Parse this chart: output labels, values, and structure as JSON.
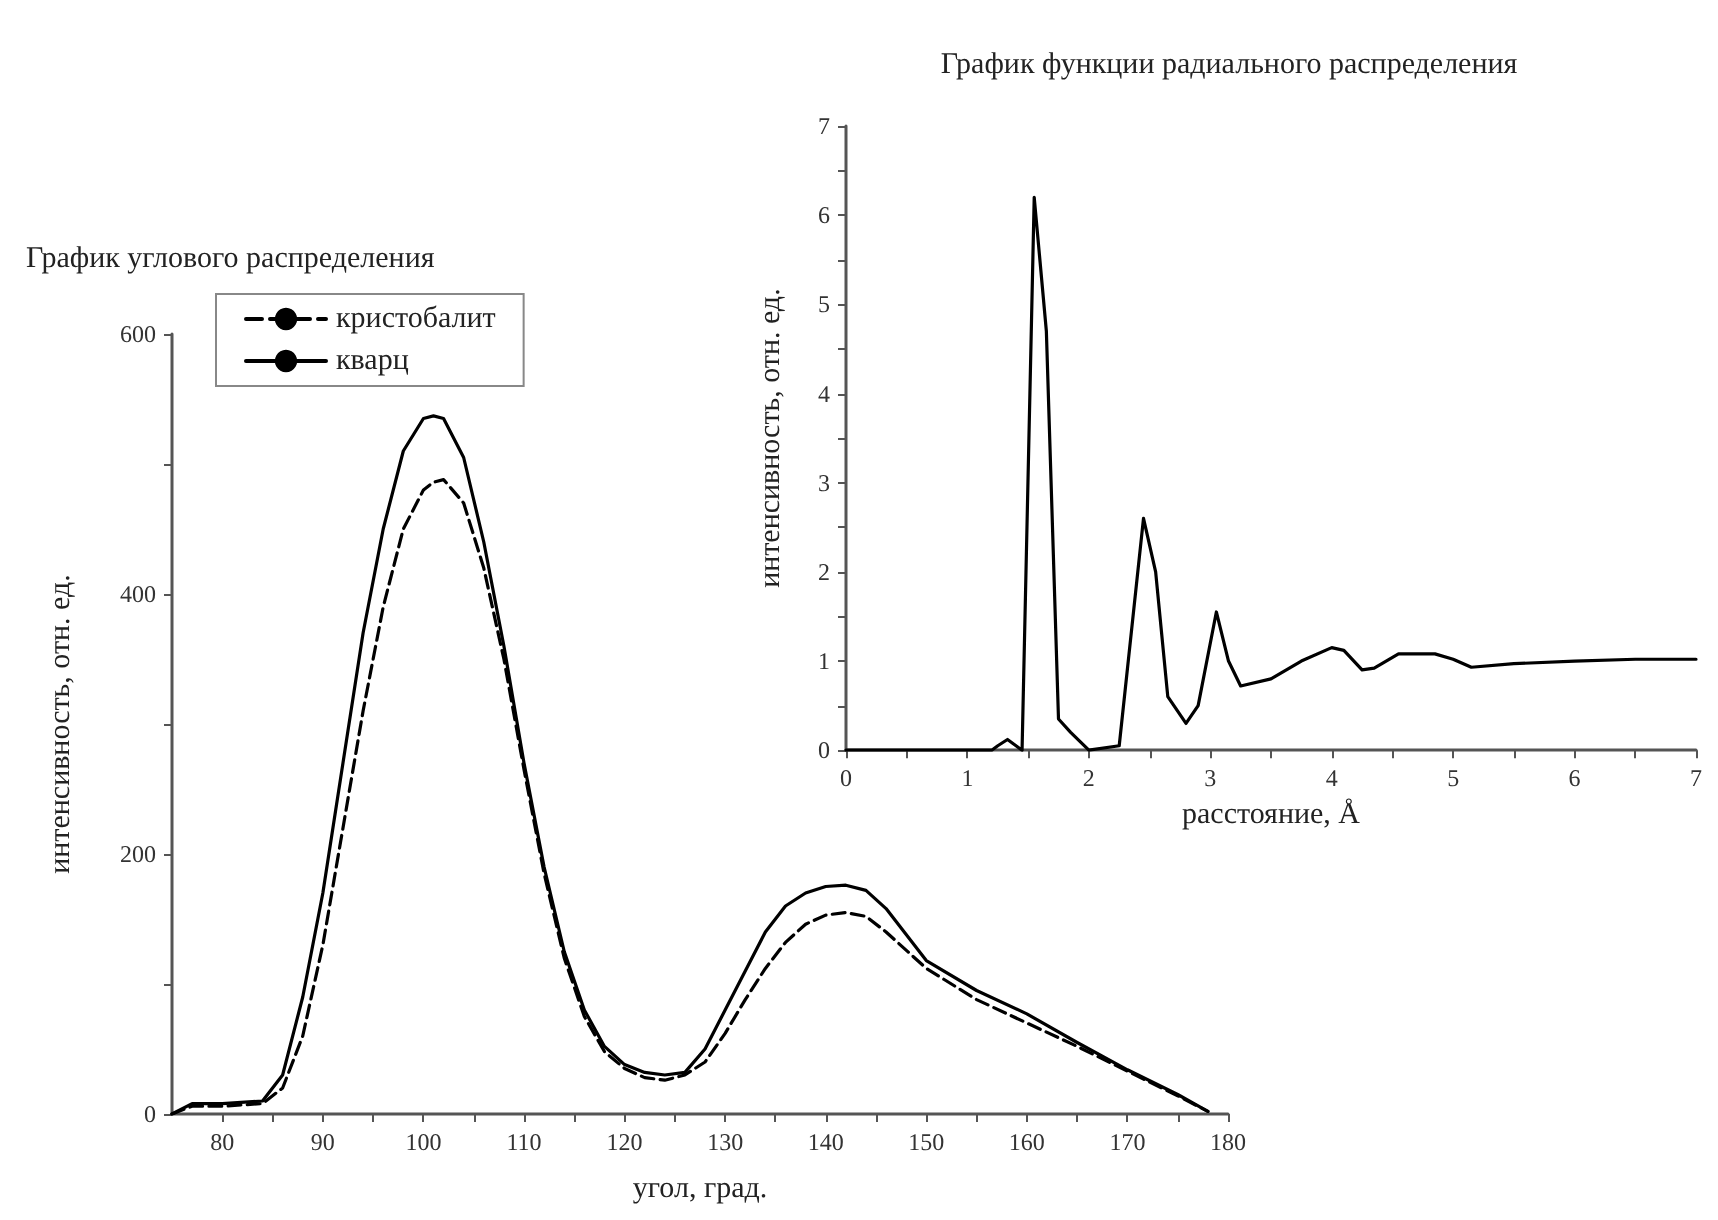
{
  "chart_data": [
    {
      "type": "line",
      "title": "График углового распределения",
      "xlabel": "угол, град.",
      "ylabel": "интенсивность, отн. ед.",
      "xlim": [
        75,
        180
      ],
      "xticks": [
        80,
        {
          "value": 85,
          "label": null
        },
        90,
        {
          "value": 95,
          "label": null
        },
        100,
        {
          "value": 105,
          "label": null
        },
        110,
        {
          "value": 115,
          "label": null
        },
        120,
        {
          "value": 125,
          "label": null
        },
        130,
        {
          "value": 135,
          "label": null
        },
        140,
        {
          "value": 145,
          "label": null
        },
        150,
        {
          "value": 155,
          "label": null
        },
        160,
        {
          "value": 165,
          "label": null
        },
        170,
        {
          "value": 175,
          "label": null
        },
        180
      ],
      "ylim": [
        0,
        600
      ],
      "yticks": [
        0,
        {
          "value": 100,
          "label": null
        },
        200,
        {
          "value": 300,
          "label": null
        },
        400,
        {
          "value": 500,
          "label": null
        },
        600
      ],
      "grid": false,
      "legend": "top left",
      "marker": "none",
      "x": [
        75,
        77,
        80,
        84,
        86,
        88,
        90,
        92,
        94,
        96,
        98,
        100,
        101,
        102,
        104,
        106,
        108,
        110,
        112,
        114,
        116,
        118,
        120,
        122,
        124,
        126,
        128,
        130,
        132,
        134,
        136,
        138,
        140,
        142,
        144,
        146,
        150,
        155,
        160,
        165,
        170,
        175,
        178
      ],
      "series": [
        {
          "name": "кристобалит",
          "color": "#000000",
          "line_style": "dashed",
          "values": [
            0,
            6,
            6,
            8,
            20,
            60,
            130,
            220,
            310,
            390,
            450,
            480,
            486,
            488,
            470,
            420,
            350,
            265,
            185,
            120,
            75,
            48,
            35,
            28,
            26,
            30,
            40,
            62,
            88,
            112,
            132,
            146,
            153,
            155,
            152,
            140,
            112,
            88,
            70,
            52,
            33,
            14,
            2
          ]
        },
        {
          "name": "кварц",
          "color": "#000000",
          "line_style": "solid",
          "values": [
            0,
            8,
            8,
            10,
            30,
            90,
            170,
            270,
            370,
            450,
            510,
            535,
            537,
            535,
            505,
            440,
            360,
            270,
            190,
            125,
            80,
            52,
            38,
            32,
            30,
            32,
            50,
            80,
            110,
            140,
            160,
            170,
            175,
            176,
            172,
            158,
            118,
            95,
            77,
            55,
            34,
            15,
            2
          ]
        }
      ]
    },
    {
      "type": "line",
      "title": "График функции радиального распределения",
      "xlabel": "расстояние, Å",
      "ylabel": "интенсивность, отн. ед.",
      "xlim": [
        0,
        7
      ],
      "xticks": [
        0,
        {
          "value": 0.5,
          "label": null
        },
        1,
        {
          "value": 1.5,
          "label": null
        },
        2,
        {
          "value": 2.5,
          "label": null
        },
        3,
        {
          "value": 3.5,
          "label": null
        },
        4,
        {
          "value": 4.5,
          "label": null
        },
        5,
        {
          "value": 5.5,
          "label": null
        },
        6,
        {
          "value": 6.5,
          "label": null
        },
        7
      ],
      "ylim": [
        0,
        7
      ],
      "yticks": [
        0,
        {
          "value": 0.5,
          "label": null
        },
        1,
        {
          "value": 1.5,
          "label": null
        },
        2,
        {
          "value": 2.5,
          "label": null
        },
        3,
        {
          "value": 3.5,
          "label": null
        },
        4,
        {
          "value": 4.5,
          "label": null
        },
        5,
        {
          "value": 5.5,
          "label": null
        },
        6,
        {
          "value": 6.5,
          "label": null
        },
        7
      ],
      "grid": false,
      "marker": "none",
      "x": [
        0,
        0.5,
        1,
        1.2,
        1.25,
        1.33,
        1.4,
        1.45,
        1.55,
        1.65,
        1.75,
        1.85,
        2.0,
        2.25,
        2.45,
        2.55,
        2.65,
        2.8,
        2.9,
        3.05,
        3.15,
        3.25,
        3.5,
        3.75,
        4.0,
        4.1,
        4.25,
        4.35,
        4.55,
        4.85,
        5.0,
        5.15,
        5.5,
        6.0,
        6.5,
        7.0
      ],
      "series": [
        {
          "color": "#000000",
          "values": [
            0,
            0,
            0,
            0,
            0.05,
            0.12,
            0.05,
            0,
            6.2,
            4.7,
            0.35,
            0.2,
            0,
            0.05,
            2.6,
            2.0,
            0.6,
            0.3,
            0.5,
            1.55,
            1.0,
            0.72,
            0.8,
            1.0,
            1.15,
            1.12,
            0.9,
            0.92,
            1.08,
            1.08,
            1.02,
            0.93,
            0.97,
            1.0,
            1.02,
            1.02
          ]
        }
      ]
    }
  ]
}
